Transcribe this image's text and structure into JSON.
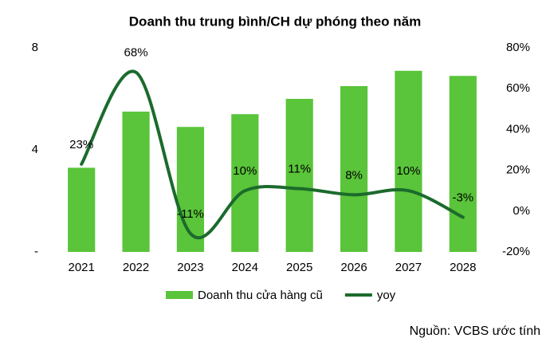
{
  "chart_data": {
    "type": "bar",
    "title": "Doanh thu trung bình/CH dự phóng theo năm",
    "categories": [
      "2021",
      "2022",
      "2023",
      "2024",
      "2025",
      "2026",
      "2027",
      "2028"
    ],
    "series": [
      {
        "name": "Doanh thu cửa hàng cũ",
        "type": "bar",
        "color": "#5ac43a",
        "values": [
          3.3,
          5.5,
          4.9,
          5.4,
          6.0,
          6.5,
          7.1,
          6.9
        ]
      },
      {
        "name": "yoy",
        "type": "line",
        "axis": "y2",
        "color": "#1b6b2c",
        "values": [
          23,
          68,
          -11,
          10,
          11,
          8,
          10,
          -3
        ],
        "value_labels": [
          "23%",
          "68%",
          "-11%",
          "10%",
          "11%",
          "8%",
          "10%",
          "-3%"
        ]
      }
    ],
    "ylim": [
      0,
      8
    ],
    "yticks": [
      {
        "value": 0,
        "label": "-"
      },
      4,
      8
    ],
    "y2lim": [
      -20,
      80
    ],
    "y2ticks": [
      {
        "value": -20,
        "label": "-20%"
      },
      {
        "value": 0,
        "label": "0%"
      },
      {
        "value": 20,
        "label": "20%"
      },
      {
        "value": 40,
        "label": "40%"
      },
      {
        "value": 60,
        "label": "60%"
      },
      {
        "value": 80,
        "label": "80%"
      }
    ],
    "legend": "bottom",
    "source": "Nguồn: VCBS ước tính"
  }
}
